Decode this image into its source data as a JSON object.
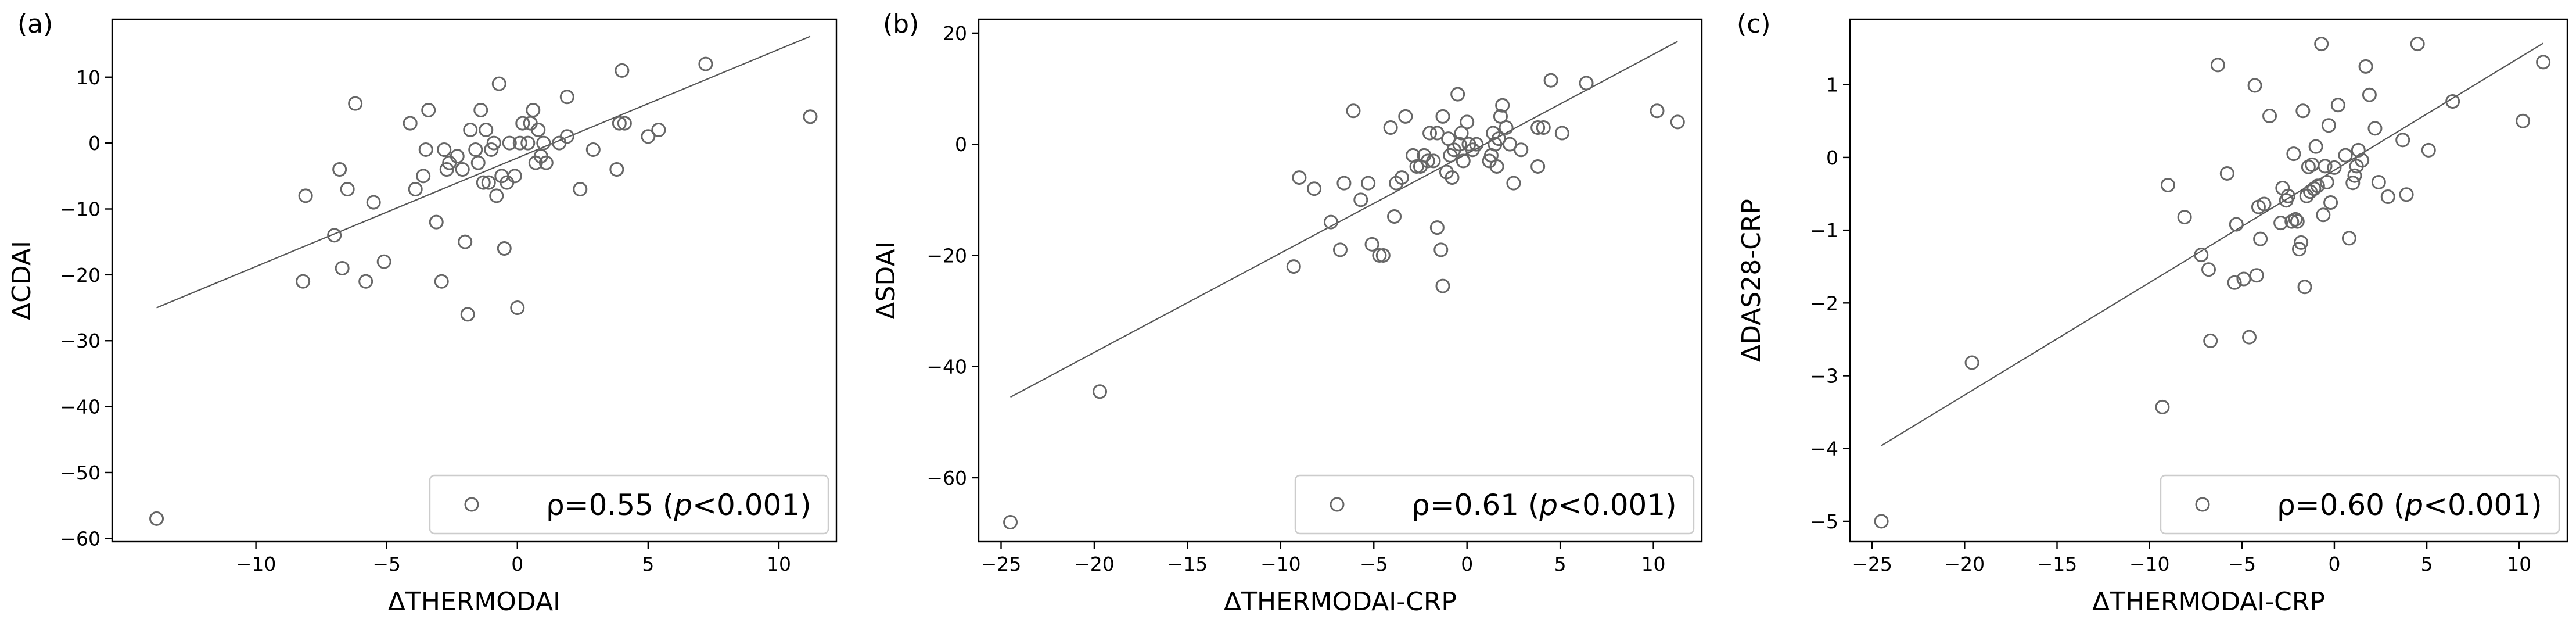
{
  "chart_data": [
    {
      "type": "scatter",
      "panel_label": "(a)",
      "xlabel": "ΔTHERMODAI",
      "ylabel": "ΔCDAI",
      "xlim": [
        -15.5,
        12.2
      ],
      "ylim": [
        -60.5,
        18.8
      ],
      "xticks": [
        -10,
        -5,
        0,
        5,
        10
      ],
      "yticks": [
        10,
        0,
        -10,
        -20,
        -30,
        -40,
        -50,
        -60
      ],
      "xtick_labels": [
        "−10",
        "−5",
        "0",
        "5",
        "10"
      ],
      "ytick_labels": [
        "10",
        "0",
        "−10",
        "−20",
        "−30",
        "−40",
        "−50",
        "−60"
      ],
      "legend": {
        "marker": "open-circle",
        "prefix": "ρ=0.55 (",
        "p_symbol": "p",
        "suffix": "<0.001)",
        "location": "lower-right"
      },
      "fit_line": {
        "x": [
          -13.8,
          11.2
        ],
        "y": [
          -25.0,
          16.2
        ]
      },
      "points": [
        [
          -13.8,
          -57
        ],
        [
          -8.2,
          -21
        ],
        [
          -8.1,
          -8
        ],
        [
          -7.0,
          -14
        ],
        [
          -6.8,
          -4
        ],
        [
          -6.7,
          -19
        ],
        [
          -6.5,
          -7
        ],
        [
          -6.2,
          6
        ],
        [
          -5.8,
          -21
        ],
        [
          -5.5,
          -9
        ],
        [
          -5.1,
          -18
        ],
        [
          -4.1,
          3
        ],
        [
          -3.9,
          -7
        ],
        [
          -3.6,
          -5
        ],
        [
          -3.5,
          -1
        ],
        [
          -3.4,
          5
        ],
        [
          -3.1,
          -12
        ],
        [
          -2.9,
          -21
        ],
        [
          -2.8,
          -1
        ],
        [
          -2.7,
          -4
        ],
        [
          -2.6,
          -3
        ],
        [
          -2.3,
          -2
        ],
        [
          -2.1,
          -4
        ],
        [
          -2.0,
          -15
        ],
        [
          -1.9,
          -26
        ],
        [
          -1.8,
          2
        ],
        [
          -1.6,
          -1
        ],
        [
          -1.5,
          -3
        ],
        [
          -1.4,
          5
        ],
        [
          -1.3,
          -6
        ],
        [
          -1.2,
          2
        ],
        [
          -1.1,
          -6
        ],
        [
          -1.0,
          -1
        ],
        [
          -0.9,
          0
        ],
        [
          -0.8,
          -8
        ],
        [
          -0.7,
          9
        ],
        [
          -0.6,
          -5
        ],
        [
          -0.5,
          -16
        ],
        [
          -0.4,
          -6
        ],
        [
          -0.3,
          0
        ],
        [
          -0.1,
          -5
        ],
        [
          0.0,
          -25
        ],
        [
          0.1,
          0
        ],
        [
          0.2,
          3
        ],
        [
          0.4,
          0
        ],
        [
          0.5,
          3
        ],
        [
          0.6,
          5
        ],
        [
          0.7,
          -3
        ],
        [
          0.8,
          2
        ],
        [
          0.9,
          -2
        ],
        [
          1.0,
          0
        ],
        [
          1.1,
          -3
        ],
        [
          1.6,
          0
        ],
        [
          1.9,
          1
        ],
        [
          1.9,
          7
        ],
        [
          2.4,
          -7
        ],
        [
          2.9,
          -1
        ],
        [
          3.8,
          -4
        ],
        [
          3.9,
          3
        ],
        [
          4.0,
          11
        ],
        [
          4.1,
          3
        ],
        [
          5.0,
          1
        ],
        [
          5.4,
          2
        ],
        [
          7.2,
          12
        ],
        [
          11.2,
          4
        ]
      ]
    },
    {
      "type": "scatter",
      "panel_label": "(b)",
      "xlabel": "ΔTHERMODAI-CRP",
      "ylabel": "ΔSDAI",
      "xlim": [
        -26.2,
        12.6
      ],
      "ylim": [
        -71.5,
        22.5
      ],
      "xticks": [
        -25,
        -20,
        -15,
        -10,
        -5,
        0,
        5,
        10
      ],
      "yticks": [
        20,
        0,
        -20,
        -40,
        -60
      ],
      "xtick_labels": [
        "−25",
        "−20",
        "−15",
        "−10",
        "−5",
        "0",
        "5",
        "10"
      ],
      "ytick_labels": [
        "20",
        "0",
        "−20",
        "−40",
        "−60"
      ],
      "legend": {
        "marker": "open-circle",
        "prefix": "ρ=0.61 (",
        "p_symbol": "p",
        "suffix": "<0.001)",
        "location": "lower-right"
      },
      "fit_line": {
        "x": [
          -24.5,
          11.3
        ],
        "y": [
          -45.5,
          18.5
        ]
      },
      "points": [
        [
          -24.5,
          -68
        ],
        [
          -19.7,
          -44.5
        ],
        [
          -9.3,
          -22
        ],
        [
          -9.0,
          -6
        ],
        [
          -8.2,
          -8
        ],
        [
          -7.3,
          -14
        ],
        [
          -6.8,
          -19
        ],
        [
          -6.6,
          -7
        ],
        [
          -6.1,
          6
        ],
        [
          -5.7,
          -10
        ],
        [
          -5.3,
          -7
        ],
        [
          -5.1,
          -18
        ],
        [
          -4.7,
          -20
        ],
        [
          -4.5,
          -20
        ],
        [
          -4.1,
          3
        ],
        [
          -3.9,
          -13
        ],
        [
          -3.8,
          -7
        ],
        [
          -3.5,
          -6
        ],
        [
          -3.3,
          5
        ],
        [
          -2.9,
          -2
        ],
        [
          -2.7,
          -4
        ],
        [
          -2.5,
          -4
        ],
        [
          -2.3,
          -2
        ],
        [
          -2.1,
          -3
        ],
        [
          -2.0,
          2
        ],
        [
          -1.8,
          -3
        ],
        [
          -1.6,
          -15
        ],
        [
          -1.6,
          2
        ],
        [
          -1.4,
          -19
        ],
        [
          -1.3,
          -25.5
        ],
        [
          -1.3,
          5
        ],
        [
          -1.1,
          -5
        ],
        [
          -1.0,
          1
        ],
        [
          -0.9,
          -2
        ],
        [
          -0.8,
          -6
        ],
        [
          -0.7,
          -1
        ],
        [
          -0.5,
          9
        ],
        [
          -0.4,
          0
        ],
        [
          -0.3,
          2
        ],
        [
          -0.2,
          -3
        ],
        [
          0.0,
          4
        ],
        [
          0.1,
          0
        ],
        [
          0.3,
          -1
        ],
        [
          0.5,
          0
        ],
        [
          1.2,
          -3
        ],
        [
          1.3,
          -2
        ],
        [
          1.4,
          2
        ],
        [
          1.5,
          0
        ],
        [
          1.6,
          -4
        ],
        [
          1.7,
          1
        ],
        [
          1.8,
          5
        ],
        [
          1.9,
          7
        ],
        [
          2.1,
          3
        ],
        [
          2.3,
          0
        ],
        [
          2.5,
          -7
        ],
        [
          2.9,
          -1
        ],
        [
          3.8,
          -4
        ],
        [
          3.8,
          3
        ],
        [
          4.1,
          3
        ],
        [
          4.5,
          11.5
        ],
        [
          5.1,
          2
        ],
        [
          6.4,
          11
        ],
        [
          10.2,
          6
        ],
        [
          11.3,
          4
        ]
      ]
    },
    {
      "type": "scatter",
      "panel_label": "(c)",
      "xlabel": "ΔTHERMODAI-CRP",
      "ylabel": "ΔDAS28-CRP",
      "xlim": [
        -26.2,
        12.6
      ],
      "ylim": [
        -5.28,
        1.9
      ],
      "xticks": [
        -25,
        -20,
        -15,
        -10,
        -5,
        0,
        5,
        10
      ],
      "yticks": [
        1,
        0,
        -1,
        -2,
        -3,
        -4,
        -5
      ],
      "xtick_labels": [
        "−25",
        "−20",
        "−15",
        "−10",
        "−5",
        "0",
        "5",
        "10"
      ],
      "ytick_labels": [
        "1",
        "0",
        "−1",
        "−2",
        "−3",
        "−4",
        "−5"
      ],
      "legend": {
        "marker": "open-circle",
        "prefix": "ρ=0.60 (",
        "p_symbol": "p",
        "suffix": "<0.001)",
        "location": "lower-right"
      },
      "fit_line": {
        "x": [
          -24.5,
          11.3
        ],
        "y": [
          -3.96,
          1.57
        ]
      },
      "points": [
        [
          -24.5,
          -5.0
        ],
        [
          -19.6,
          -2.82
        ],
        [
          -9.3,
          -3.43
        ],
        [
          -9.0,
          -0.38
        ],
        [
          -8.1,
          -0.82
        ],
        [
          -7.2,
          -1.34
        ],
        [
          -6.8,
          -1.54
        ],
        [
          -6.7,
          -2.52
        ],
        [
          -6.3,
          1.27
        ],
        [
          -5.8,
          -0.22
        ],
        [
          -5.4,
          -1.72
        ],
        [
          -5.3,
          -0.92
        ],
        [
          -4.9,
          -1.67
        ],
        [
          -4.6,
          -2.47
        ],
        [
          -4.3,
          0.99
        ],
        [
          -4.2,
          -1.62
        ],
        [
          -4.1,
          -0.68
        ],
        [
          -4.0,
          -1.12
        ],
        [
          -3.8,
          -0.64
        ],
        [
          -3.5,
          0.57
        ],
        [
          -2.9,
          -0.9
        ],
        [
          -2.8,
          -0.42
        ],
        [
          -2.6,
          -0.59
        ],
        [
          -2.5,
          -0.53
        ],
        [
          -2.3,
          -0.88
        ],
        [
          -2.2,
          0.05
        ],
        [
          -2.1,
          -0.85
        ],
        [
          -2.0,
          -0.88
        ],
        [
          -1.9,
          -1.26
        ],
        [
          -1.8,
          -1.17
        ],
        [
          -1.7,
          0.64
        ],
        [
          -1.6,
          -1.78
        ],
        [
          -1.5,
          -0.53
        ],
        [
          -1.4,
          -0.13
        ],
        [
          -1.3,
          -0.47
        ],
        [
          -1.2,
          -0.1
        ],
        [
          -1.1,
          -0.43
        ],
        [
          -1.0,
          0.15
        ],
        [
          -0.9,
          -0.39
        ],
        [
          -0.7,
          1.56
        ],
        [
          -0.6,
          -0.79
        ],
        [
          -0.5,
          -0.12
        ],
        [
          -0.4,
          -0.34
        ],
        [
          -0.3,
          0.44
        ],
        [
          -0.2,
          -0.62
        ],
        [
          0.0,
          -0.14
        ],
        [
          0.2,
          0.72
        ],
        [
          0.6,
          0.03
        ],
        [
          0.8,
          -1.11
        ],
        [
          1.0,
          -0.35
        ],
        [
          1.1,
          -0.25
        ],
        [
          1.2,
          -0.12
        ],
        [
          1.3,
          0.1
        ],
        [
          1.5,
          -0.04
        ],
        [
          1.7,
          1.25
        ],
        [
          1.9,
          0.86
        ],
        [
          2.2,
          0.4
        ],
        [
          2.4,
          -0.34
        ],
        [
          2.9,
          -0.54
        ],
        [
          3.7,
          0.24
        ],
        [
          3.9,
          -0.51
        ],
        [
          4.5,
          1.56
        ],
        [
          5.1,
          0.1
        ],
        [
          6.4,
          0.77
        ],
        [
          10.2,
          0.5
        ],
        [
          11.3,
          1.31
        ]
      ]
    }
  ]
}
